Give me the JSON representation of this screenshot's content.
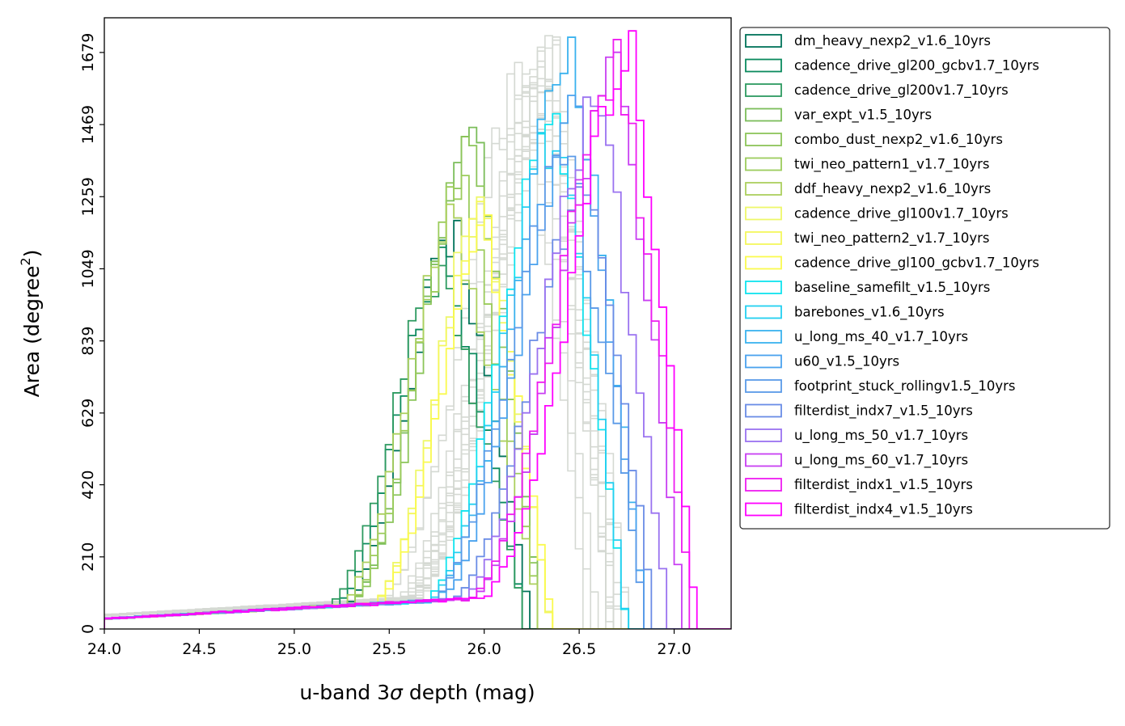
{
  "chart_data": {
    "type": "histogram",
    "xlabel_main": "u-band 3",
    "xlabel_symbol": "σ",
    "xlabel_tail": " depth (mag)",
    "ylabel_main": "Area (degree",
    "ylabel_sup": "2",
    "ylabel_tail": ")",
    "xlim": [
      24.0,
      27.3
    ],
    "ylim": [
      0,
      1780
    ],
    "xticks": [
      24.0,
      24.5,
      25.0,
      25.5,
      26.0,
      26.5,
      27.0
    ],
    "xtick_labels": [
      "24.0",
      "24.5",
      "25.0",
      "25.5",
      "26.0",
      "26.5",
      "27.0"
    ],
    "yticks": [
      0,
      210,
      420,
      629,
      839,
      1049,
      1259,
      1469,
      1679
    ],
    "ytick_labels": [
      "0",
      "210",
      "420",
      "629",
      "839",
      "1049",
      "1259",
      "1469",
      "1679"
    ],
    "grid": false,
    "legend_position": "outside upper right",
    "background_runs": {
      "color": "#d5d9d3",
      "count": 18,
      "description_free": true,
      "peak_range": [
        26.2,
        26.4
      ],
      "peak_height_range": [
        1500,
        1680
      ]
    },
    "series": [
      {
        "name": "dm_heavy_nexp2_v1.6_10yrs",
        "color": "#00735a",
        "peak": 25.85,
        "height": 1150,
        "sigma": 0.24,
        "upper_edge": 26.25
      },
      {
        "name": "cadence_drive_gl200_gcbv1.7_10yrs",
        "color": "#0a8a5e",
        "peak": 25.8,
        "height": 1090,
        "sigma": 0.24,
        "upper_edge": 26.22
      },
      {
        "name": "cadence_drive_gl200v1.7_10yrs",
        "color": "#2d9a60",
        "peak": 25.78,
        "height": 1040,
        "sigma": 0.25,
        "upper_edge": 26.22
      },
      {
        "name": "var_expt_v1.5_10yrs",
        "color": "#7bbd5a",
        "peak": 25.95,
        "height": 1500,
        "sigma": 0.26,
        "upper_edge": 26.3
      },
      {
        "name": "combo_dust_nexp2_v1.6_10yrs",
        "color": "#8cc55a",
        "peak": 25.95,
        "height": 1420,
        "sigma": 0.26,
        "upper_edge": 26.3
      },
      {
        "name": "twi_neo_pattern1_v1.7_10yrs",
        "color": "#9ccc5c",
        "peak": 25.9,
        "height": 1280,
        "sigma": 0.25,
        "upper_edge": 26.3
      },
      {
        "name": "ddf_heavy_nexp2_v1.6_10yrs",
        "color": "#acd05e",
        "peak": 25.85,
        "height": 1180,
        "sigma": 0.25,
        "upper_edge": 26.3
      },
      {
        "name": "cadence_drive_gl100v1.7_10yrs",
        "color": "#eef76a",
        "peak": 26.0,
        "height": 1230,
        "sigma": 0.24,
        "upper_edge": 26.35
      },
      {
        "name": "twi_neo_pattern2_v1.7_10yrs",
        "color": "#f4f75c",
        "peak": 26.0,
        "height": 1200,
        "sigma": 0.24,
        "upper_edge": 26.35
      },
      {
        "name": "cadence_drive_gl100_gcbv1.7_10yrs",
        "color": "#fafa4e",
        "peak": 26.02,
        "height": 1160,
        "sigma": 0.24,
        "upper_edge": 26.36
      },
      {
        "name": "baseline_samefilt_v1.5_10yrs",
        "color": "#0fe4ef",
        "peak": 26.38,
        "height": 1500,
        "sigma": 0.28,
        "upper_edge": 26.75
      },
      {
        "name": "barebones_v1.6_10yrs",
        "color": "#22d0f0",
        "peak": 26.4,
        "height": 1460,
        "sigma": 0.28,
        "upper_edge": 26.75
      },
      {
        "name": "u_long_ms_40_v1.7_10yrs",
        "color": "#3ab2ee",
        "peak": 26.48,
        "height": 1680,
        "sigma": 0.3,
        "upper_edge": 26.85
      },
      {
        "name": "u60_v1.5_10yrs",
        "color": "#4aa2ee",
        "peak": 26.5,
        "height": 1480,
        "sigma": 0.3,
        "upper_edge": 26.85
      },
      {
        "name": "footprint_stuck_rollingv1.5_10yrs",
        "color": "#5a9ae8",
        "peak": 26.45,
        "height": 1380,
        "sigma": 0.3,
        "upper_edge": 26.85
      },
      {
        "name": "filterdist_indx7_v1.5_10yrs",
        "color": "#6a8ce6",
        "peak": 26.55,
        "height": 1280,
        "sigma": 0.3,
        "upper_edge": 26.9
      },
      {
        "name": "u_long_ms_50_v1.7_10yrs",
        "color": "#9a72f0",
        "peak": 26.62,
        "height": 1520,
        "sigma": 0.3,
        "upper_edge": 26.97
      },
      {
        "name": "u_long_ms_60_v1.7_10yrs",
        "color": "#c83ef2",
        "peak": 26.72,
        "height": 1620,
        "sigma": 0.32,
        "upper_edge": 27.05
      },
      {
        "name": "filterdist_indx1_v1.5_10yrs",
        "color": "#ee1cf0",
        "peak": 26.72,
        "height": 1640,
        "sigma": 0.32,
        "upper_edge": 27.1
      },
      {
        "name": "filterdist_indx4_v1.5_10yrs",
        "color": "#ff00ff",
        "peak": 26.78,
        "height": 1650,
        "sigma": 0.32,
        "upper_edge": 27.12
      }
    ]
  }
}
